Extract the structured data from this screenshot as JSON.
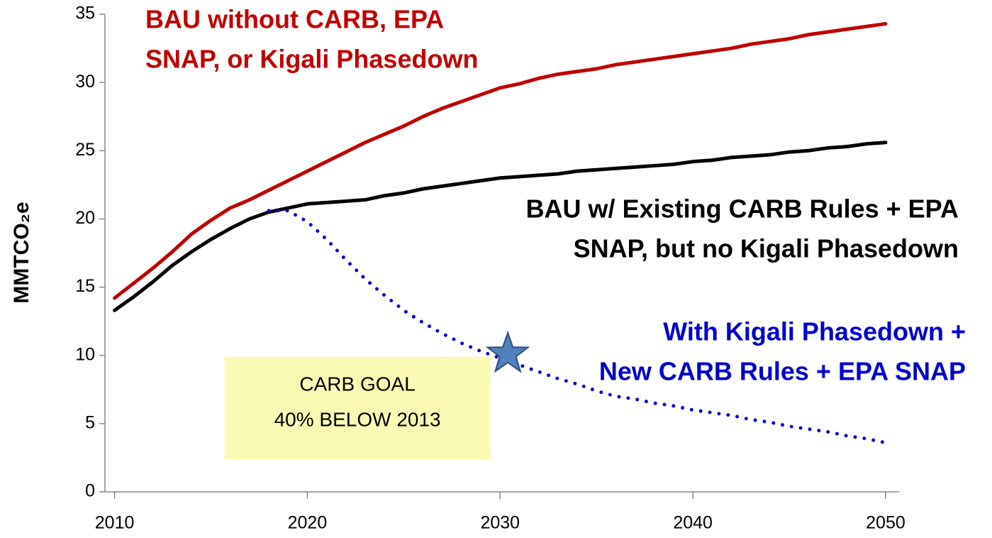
{
  "chart_data": {
    "type": "line",
    "y_label": "MMTCO₂e",
    "x": [
      2010,
      2011,
      2012,
      2013,
      2014,
      2015,
      2016,
      2017,
      2018,
      2019,
      2020,
      2021,
      2022,
      2023,
      2024,
      2025,
      2026,
      2027,
      2028,
      2029,
      2030,
      2031,
      2032,
      2033,
      2034,
      2035,
      2036,
      2037,
      2038,
      2039,
      2040,
      2041,
      2042,
      2043,
      2044,
      2045,
      2046,
      2047,
      2048,
      2049,
      2050
    ],
    "xlim": [
      2009.5,
      2050.7
    ],
    "xticks": [
      2010,
      2020,
      2030,
      2040,
      2050
    ],
    "ylim": [
      0,
      35
    ],
    "yticks": [
      0,
      5,
      10,
      15,
      20,
      25,
      30,
      35
    ],
    "series": [
      {
        "name_lines": [
          "BAU without CARB, EPA",
          "SNAP, or Kigali Phasedown"
        ],
        "color": "#c00000",
        "style": "solid",
        "values": [
          14.2,
          15.3,
          16.4,
          17.6,
          18.9,
          19.9,
          20.8,
          21.4,
          22.1,
          22.8,
          23.5,
          24.2,
          24.9,
          25.6,
          26.2,
          26.8,
          27.5,
          28.1,
          28.6,
          29.1,
          29.6,
          29.9,
          30.3,
          30.6,
          30.8,
          31.0,
          31.3,
          31.5,
          31.7,
          31.9,
          32.1,
          32.3,
          32.5,
          32.8,
          33.0,
          33.2,
          33.5,
          33.7,
          33.9,
          34.1,
          34.3
        ]
      },
      {
        "name_lines": [
          "BAU w/ Existing CARB Rules + EPA",
          "SNAP, but no Kigali Phasedown"
        ],
        "color": "#000000",
        "style": "solid",
        "values": [
          13.3,
          14.3,
          15.4,
          16.6,
          17.6,
          18.5,
          19.3,
          20.0,
          20.5,
          20.8,
          21.1,
          21.2,
          21.3,
          21.4,
          21.7,
          21.9,
          22.2,
          22.4,
          22.6,
          22.8,
          23.0,
          23.1,
          23.2,
          23.3,
          23.5,
          23.6,
          23.7,
          23.8,
          23.9,
          24.0,
          24.2,
          24.3,
          24.5,
          24.6,
          24.7,
          24.9,
          25.0,
          25.2,
          25.3,
          25.5,
          25.6
        ]
      },
      {
        "name_lines": [
          "With Kigali Phasedown +",
          "New CARB Rules + EPA SNAP"
        ],
        "color": "#0000cc",
        "style": "dotted",
        "values": [
          null,
          null,
          null,
          null,
          null,
          null,
          null,
          null,
          20.6,
          20.6,
          19.8,
          18.5,
          17.0,
          15.6,
          14.4,
          13.3,
          12.4,
          11.6,
          10.9,
          10.3,
          9.8,
          9.3,
          8.8,
          8.3,
          7.9,
          7.4,
          7.0,
          6.8,
          6.5,
          6.3,
          6.0,
          5.8,
          5.6,
          5.3,
          5.1,
          4.8,
          4.6,
          4.4,
          4.1,
          3.9,
          3.6
        ]
      }
    ],
    "star": {
      "x": 2030.4,
      "y": 10.1,
      "color": "#4f81bd"
    },
    "goal_box": {
      "lines": [
        "CARB GOAL",
        "40% BELOW 2013"
      ],
      "color": "#fafab4"
    }
  }
}
